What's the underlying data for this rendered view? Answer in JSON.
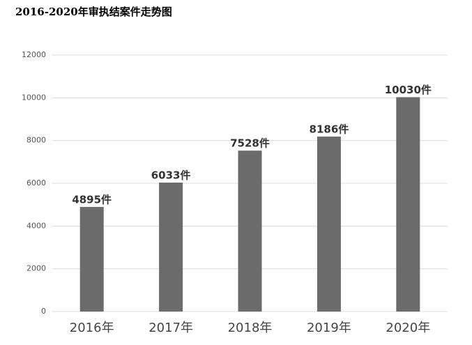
{
  "chart_data": {
    "type": "bar",
    "title": "2016-2020年审执结案件走势图",
    "categories": [
      "2016年",
      "2017年",
      "2018年",
      "2019年",
      "2020年"
    ],
    "values": [
      4895,
      6033,
      7528,
      8186,
      10030
    ],
    "value_labels": [
      "4895件",
      "6033件",
      "7528件",
      "8186件",
      "10030件"
    ],
    "color": "#6b6b6b",
    "ylim": [
      0,
      12000
    ],
    "yticks": [
      0,
      2000,
      4000,
      6000,
      8000,
      10000,
      12000
    ],
    "grid": true
  }
}
